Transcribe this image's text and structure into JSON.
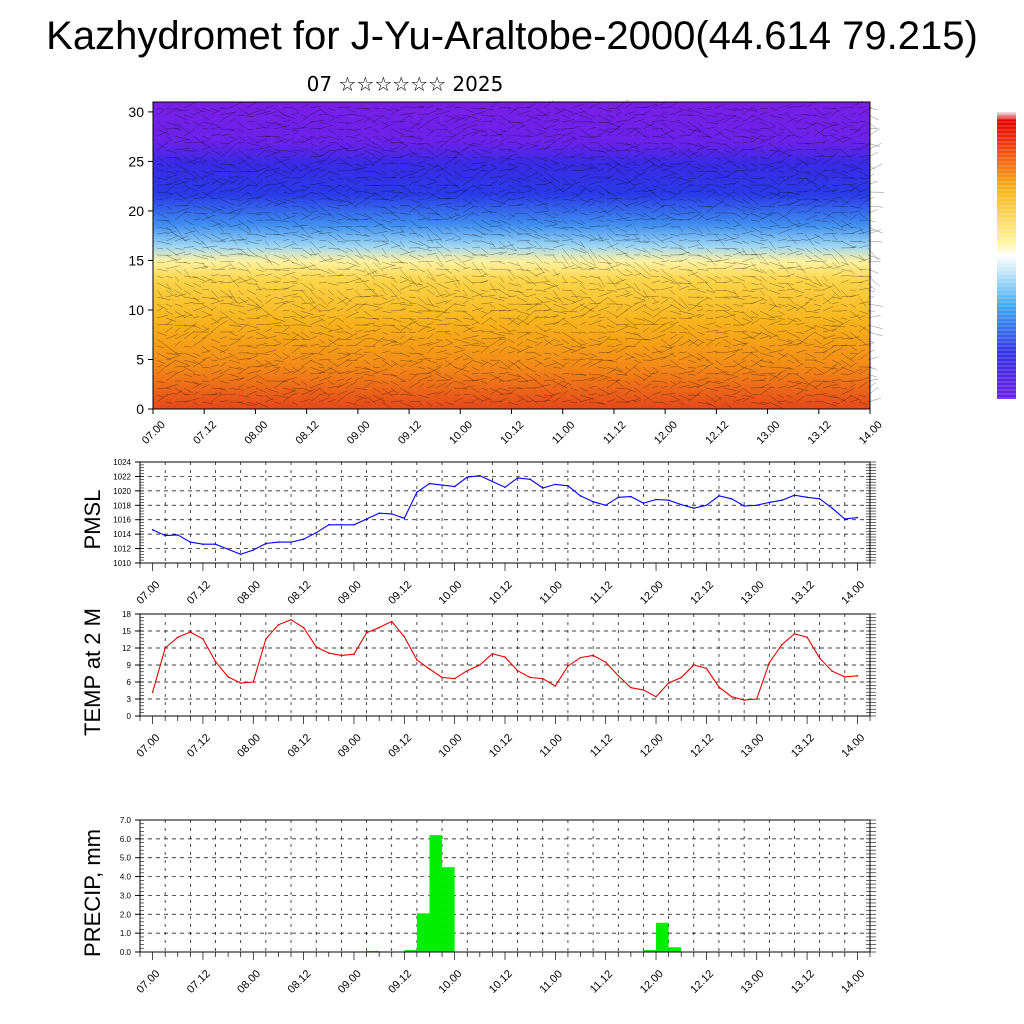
{
  "header": {
    "title": "Kazhydromet for J-Yu-Araltobe-2000(44.614 79.215)",
    "subtitle": "07 ☆☆☆☆☆☆ 2025"
  },
  "chart_data": [
    {
      "type": "heatmap",
      "title": "",
      "y_range": [
        0,
        31
      ],
      "y_ticks": [
        "0",
        "5",
        "10",
        "15",
        "20",
        "25",
        "30"
      ],
      "x_ticks": [
        "07.00",
        "07.12",
        "08.00",
        "08.12",
        "09.00",
        "09.12",
        "10.00",
        "10.12",
        "11.00",
        "11.12",
        "12.00",
        "12.12",
        "13.00",
        "13.12",
        "14.00"
      ],
      "overlay": "wind vectors",
      "colorbar": "violet-blue-cyan-white-yellow-orange-red",
      "colors": {
        "top": "#7a1ee6",
        "upper": "#2a30e8",
        "mid": "#78c8f0",
        "band": "#fff3a0",
        "lower": "#f7b21b",
        "bottom": "#e5481b"
      }
    },
    {
      "type": "line",
      "ylabel": "PMSL",
      "ylim": [
        1010,
        1024
      ],
      "y_ticks": [
        "1010",
        "1012",
        "1014",
        "1016",
        "1018",
        "1020",
        "1022",
        "1024"
      ],
      "x_ticks": [
        "07.00",
        "07.12",
        "08.00",
        "08.12",
        "09.00",
        "09.12",
        "10.00",
        "10.12",
        "11.00",
        "11.12",
        "12.00",
        "12.12",
        "13.00",
        "13.12",
        "14.00"
      ],
      "color": "#0000ff",
      "x_hours": [
        0,
        3,
        6,
        9,
        12,
        15,
        18,
        21,
        24,
        27,
        30,
        33,
        36,
        39,
        42,
        45,
        48,
        51,
        54,
        57,
        60,
        63,
        66,
        69,
        72,
        75,
        78,
        81,
        84,
        87,
        90,
        93,
        96,
        99,
        102,
        105,
        108,
        111,
        114,
        117,
        120,
        123,
        126,
        129,
        132,
        135,
        138,
        141,
        144,
        147,
        150,
        153,
        156,
        159,
        162,
        165,
        168
      ],
      "values": [
        1014.6,
        1013.8,
        1013.9,
        1012.9,
        1012.6,
        1012.6,
        1011.9,
        1011.2,
        1011.8,
        1012.7,
        1012.9,
        1012.9,
        1013.3,
        1014.2,
        1015.3,
        1015.3,
        1015.3,
        1016.1,
        1016.9,
        1016.8,
        1016.2,
        1019.8,
        1021.0,
        1020.8,
        1020.6,
        1021.9,
        1022.1,
        1021.3,
        1020.5,
        1021.8,
        1021.6,
        1020.4,
        1020.9,
        1020.7,
        1019.3,
        1018.5,
        1018.0,
        1019.1,
        1019.2,
        1018.3,
        1018.8,
        1018.7,
        1018.1,
        1017.6,
        1018.0,
        1019.3,
        1018.9,
        1017.9,
        1018.0,
        1018.4,
        1018.7,
        1019.4,
        1019.1,
        1018.9,
        1017.6,
        1016.1,
        1016.3
      ]
    },
    {
      "type": "line",
      "ylabel": "TEMP at 2 M",
      "ylim": [
        0,
        18
      ],
      "y_ticks": [
        "0",
        "3",
        "6",
        "9",
        "12",
        "15",
        "18"
      ],
      "x_ticks": [
        "07.00",
        "07.12",
        "08.00",
        "08.12",
        "09.00",
        "09.12",
        "10.00",
        "10.12",
        "11.00",
        "11.12",
        "12.00",
        "12.12",
        "13.00",
        "13.12",
        "14.00"
      ],
      "color": "#e60000",
      "x_hours": [
        0,
        3,
        6,
        9,
        12,
        15,
        18,
        21,
        24,
        27,
        30,
        33,
        36,
        39,
        42,
        45,
        48,
        51,
        54,
        57,
        60,
        63,
        66,
        69,
        72,
        75,
        78,
        81,
        84,
        87,
        90,
        93,
        96,
        99,
        102,
        105,
        108,
        111,
        114,
        117,
        120,
        123,
        126,
        129,
        132,
        135,
        138,
        141,
        144,
        147,
        150,
        153,
        156,
        159,
        162,
        165,
        168
      ],
      "values": [
        4.2,
        12.0,
        13.9,
        14.8,
        13.6,
        9.6,
        6.9,
        5.8,
        6.0,
        13.6,
        16.1,
        17.0,
        15.6,
        12.2,
        11.1,
        10.7,
        10.9,
        14.7,
        15.6,
        16.7,
        14.0,
        9.9,
        8.3,
        6.8,
        6.6,
        8.0,
        9.0,
        11.0,
        10.4,
        8.0,
        6.8,
        6.6,
        5.3,
        8.8,
        10.3,
        10.7,
        9.5,
        7.1,
        5.0,
        4.6,
        3.4,
        5.8,
        6.8,
        9.0,
        8.4,
        5.1,
        3.4,
        2.8,
        3.0,
        9.4,
        12.6,
        14.5,
        13.9,
        10.2,
        7.9,
        6.9,
        7.1
      ]
    },
    {
      "type": "bar",
      "ylabel": "PRECIP, mm",
      "ylim": [
        0,
        7
      ],
      "y_ticks": [
        "0.0",
        "1.0",
        "2.0",
        "3.0",
        "4.0",
        "5.0",
        "6.0",
        "7.0"
      ],
      "x_ticks": [
        "07.00",
        "07.12",
        "08.00",
        "08.12",
        "09.00",
        "09.12",
        "10.00",
        "10.12",
        "11.00",
        "11.12",
        "12.00",
        "12.12",
        "13.00",
        "13.12",
        "14.00"
      ],
      "color": "#00ee00",
      "x_hours": [
        54,
        63,
        66,
        69,
        72,
        120,
        123,
        126
      ],
      "values": [
        0.05,
        0.1,
        2.05,
        6.2,
        4.5,
        0.1,
        1.55,
        0.25
      ]
    }
  ]
}
